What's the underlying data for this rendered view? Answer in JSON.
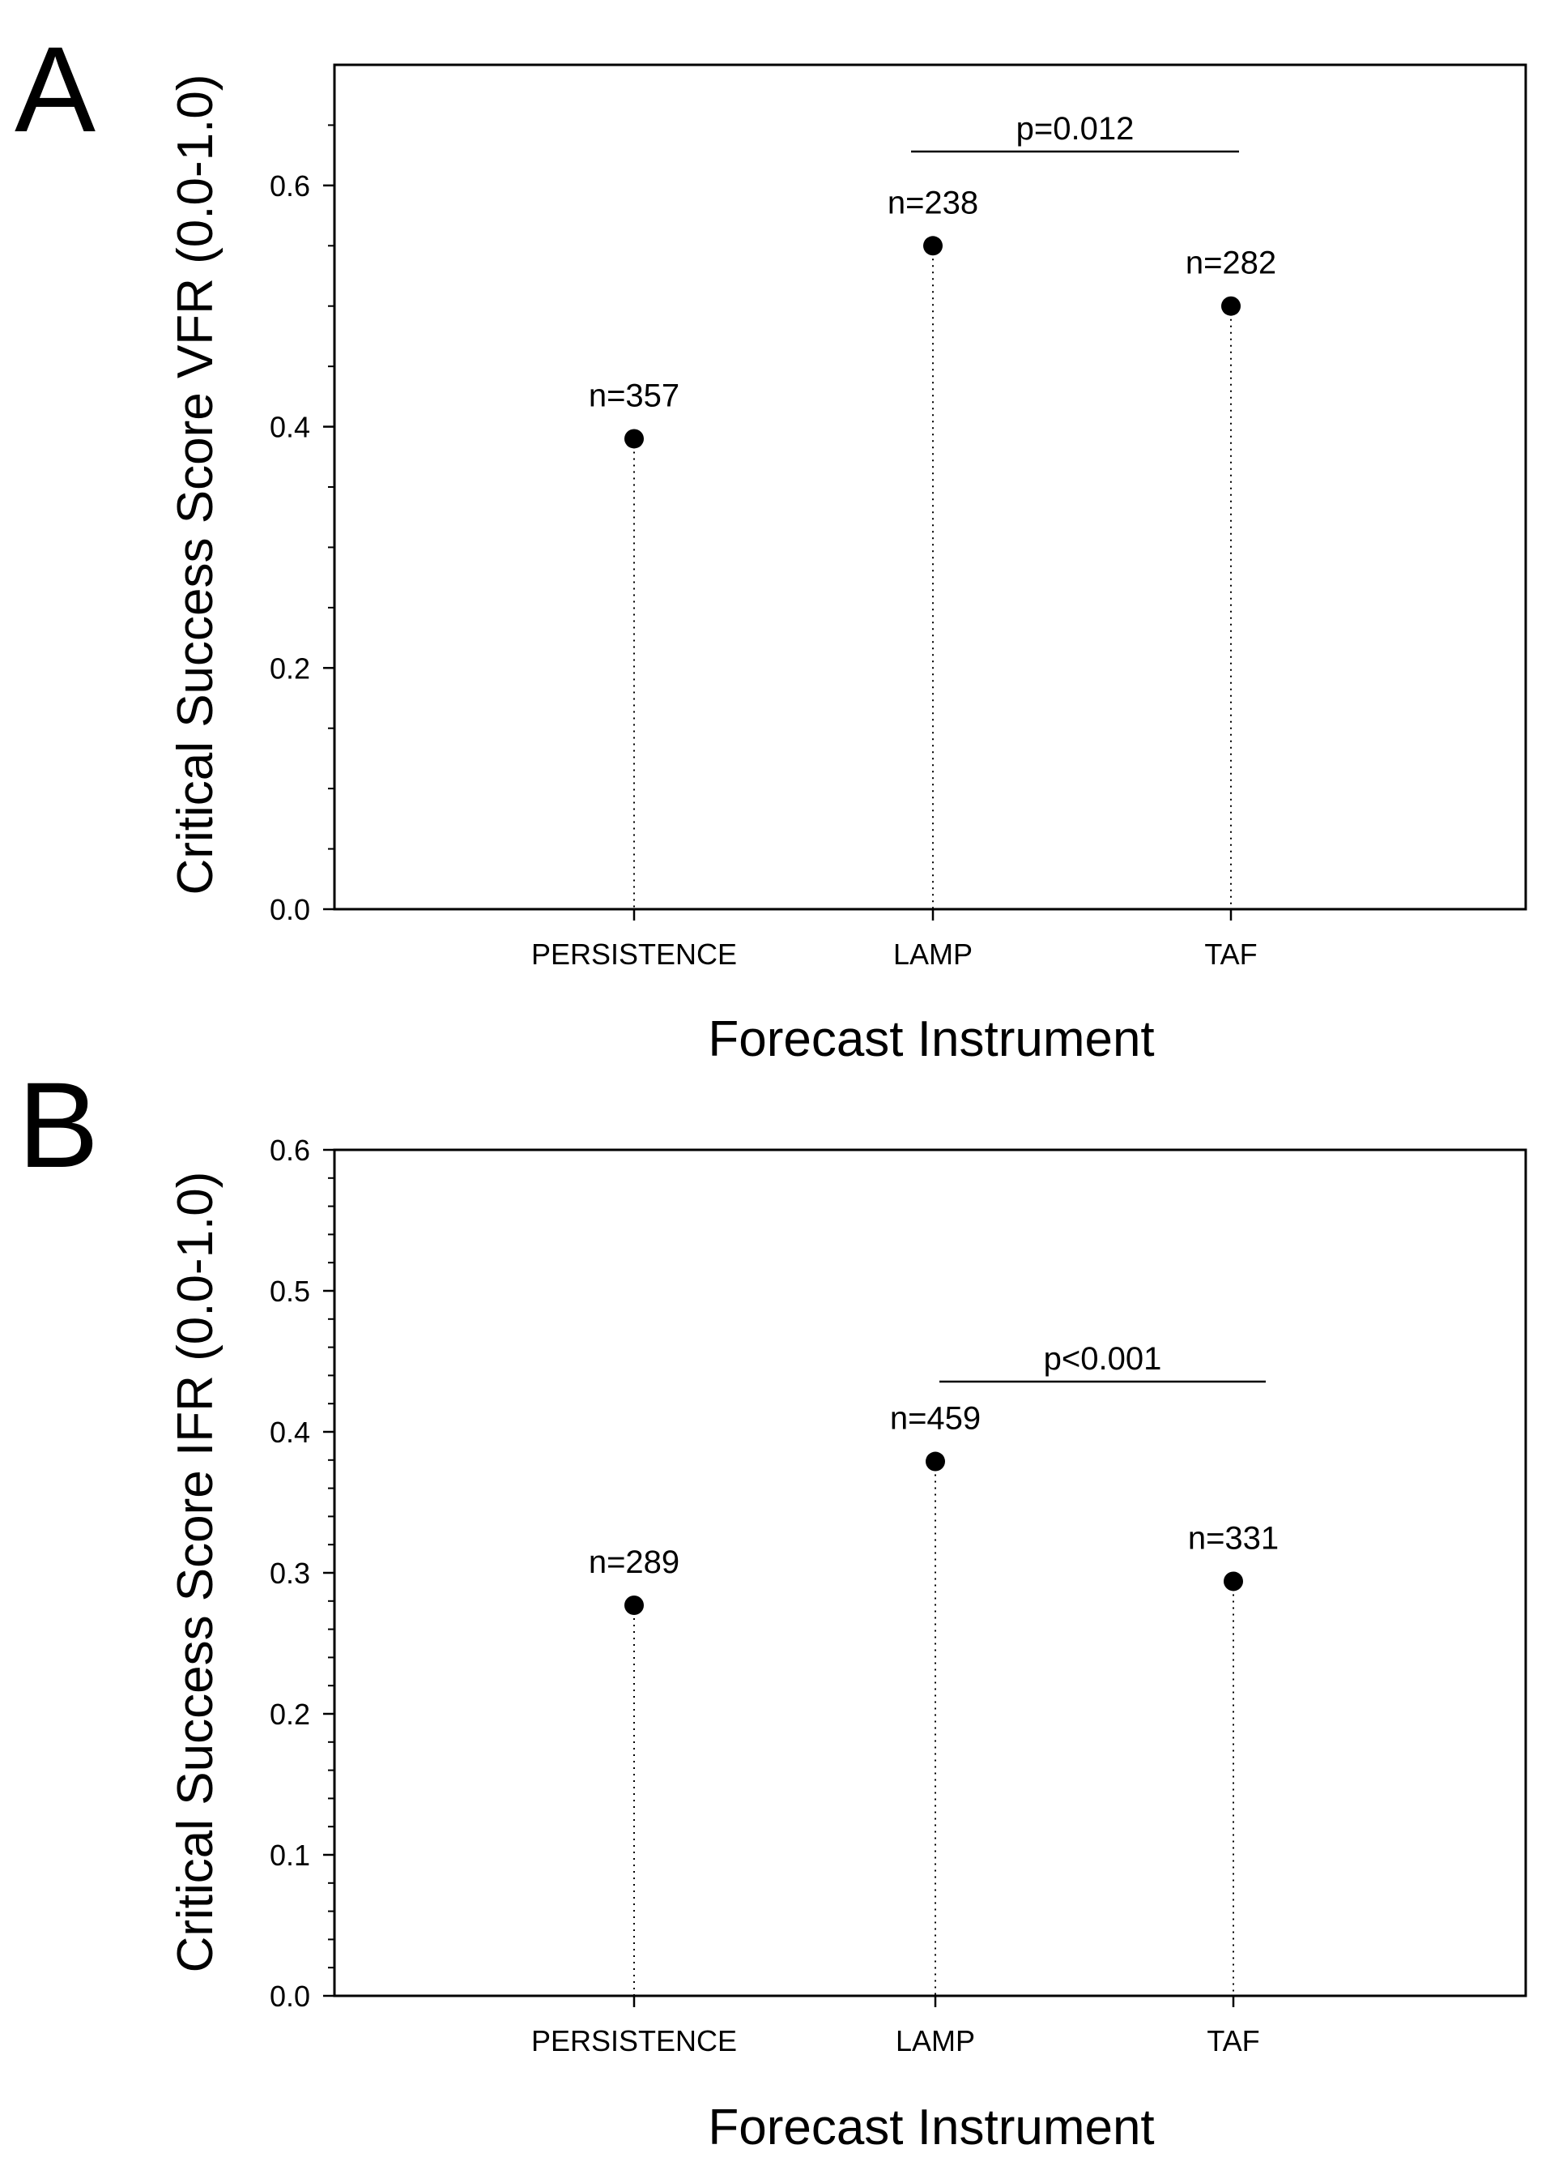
{
  "chart_data": [
    {
      "panel": "A",
      "type": "scatter",
      "xlabel": "Forecast Instrument",
      "ylabel": "Critical Success Score VFR (0.0-1.0)",
      "categories": [
        "PERSISTENCE",
        "LAMP",
        "TAF"
      ],
      "values": [
        0.39,
        0.55,
        0.5
      ],
      "n_labels": [
        "n=357",
        "n=238",
        "n=282"
      ],
      "ylim": [
        0,
        0.7
      ],
      "yticks": [
        0.0,
        0.2,
        0.4,
        0.6
      ],
      "ytick_labels": [
        "0.0",
        "0.2",
        "0.4",
        "0.6"
      ],
      "significance": {
        "label": "p=0.012",
        "from": "LAMP",
        "to": "TAF"
      }
    },
    {
      "panel": "B",
      "type": "scatter",
      "xlabel": "Forecast Instrument",
      "ylabel": "Critical Success Score IFR (0.0-1.0)",
      "categories": [
        "PERSISTENCE",
        "LAMP",
        "TAF"
      ],
      "values": [
        0.277,
        0.379,
        0.294
      ],
      "n_labels": [
        "n=289",
        "n=459",
        "n=331"
      ],
      "ylim": [
        0,
        0.6
      ],
      "yticks": [
        0.0,
        0.1,
        0.2,
        0.3,
        0.4,
        0.5,
        0.6
      ],
      "ytick_labels": [
        "0.0",
        "0.1",
        "0.2",
        "0.3",
        "0.4",
        "0.5",
        "0.6"
      ],
      "significance": {
        "label": "p<0.001",
        "from": "LAMP",
        "to": "TAF"
      }
    }
  ]
}
